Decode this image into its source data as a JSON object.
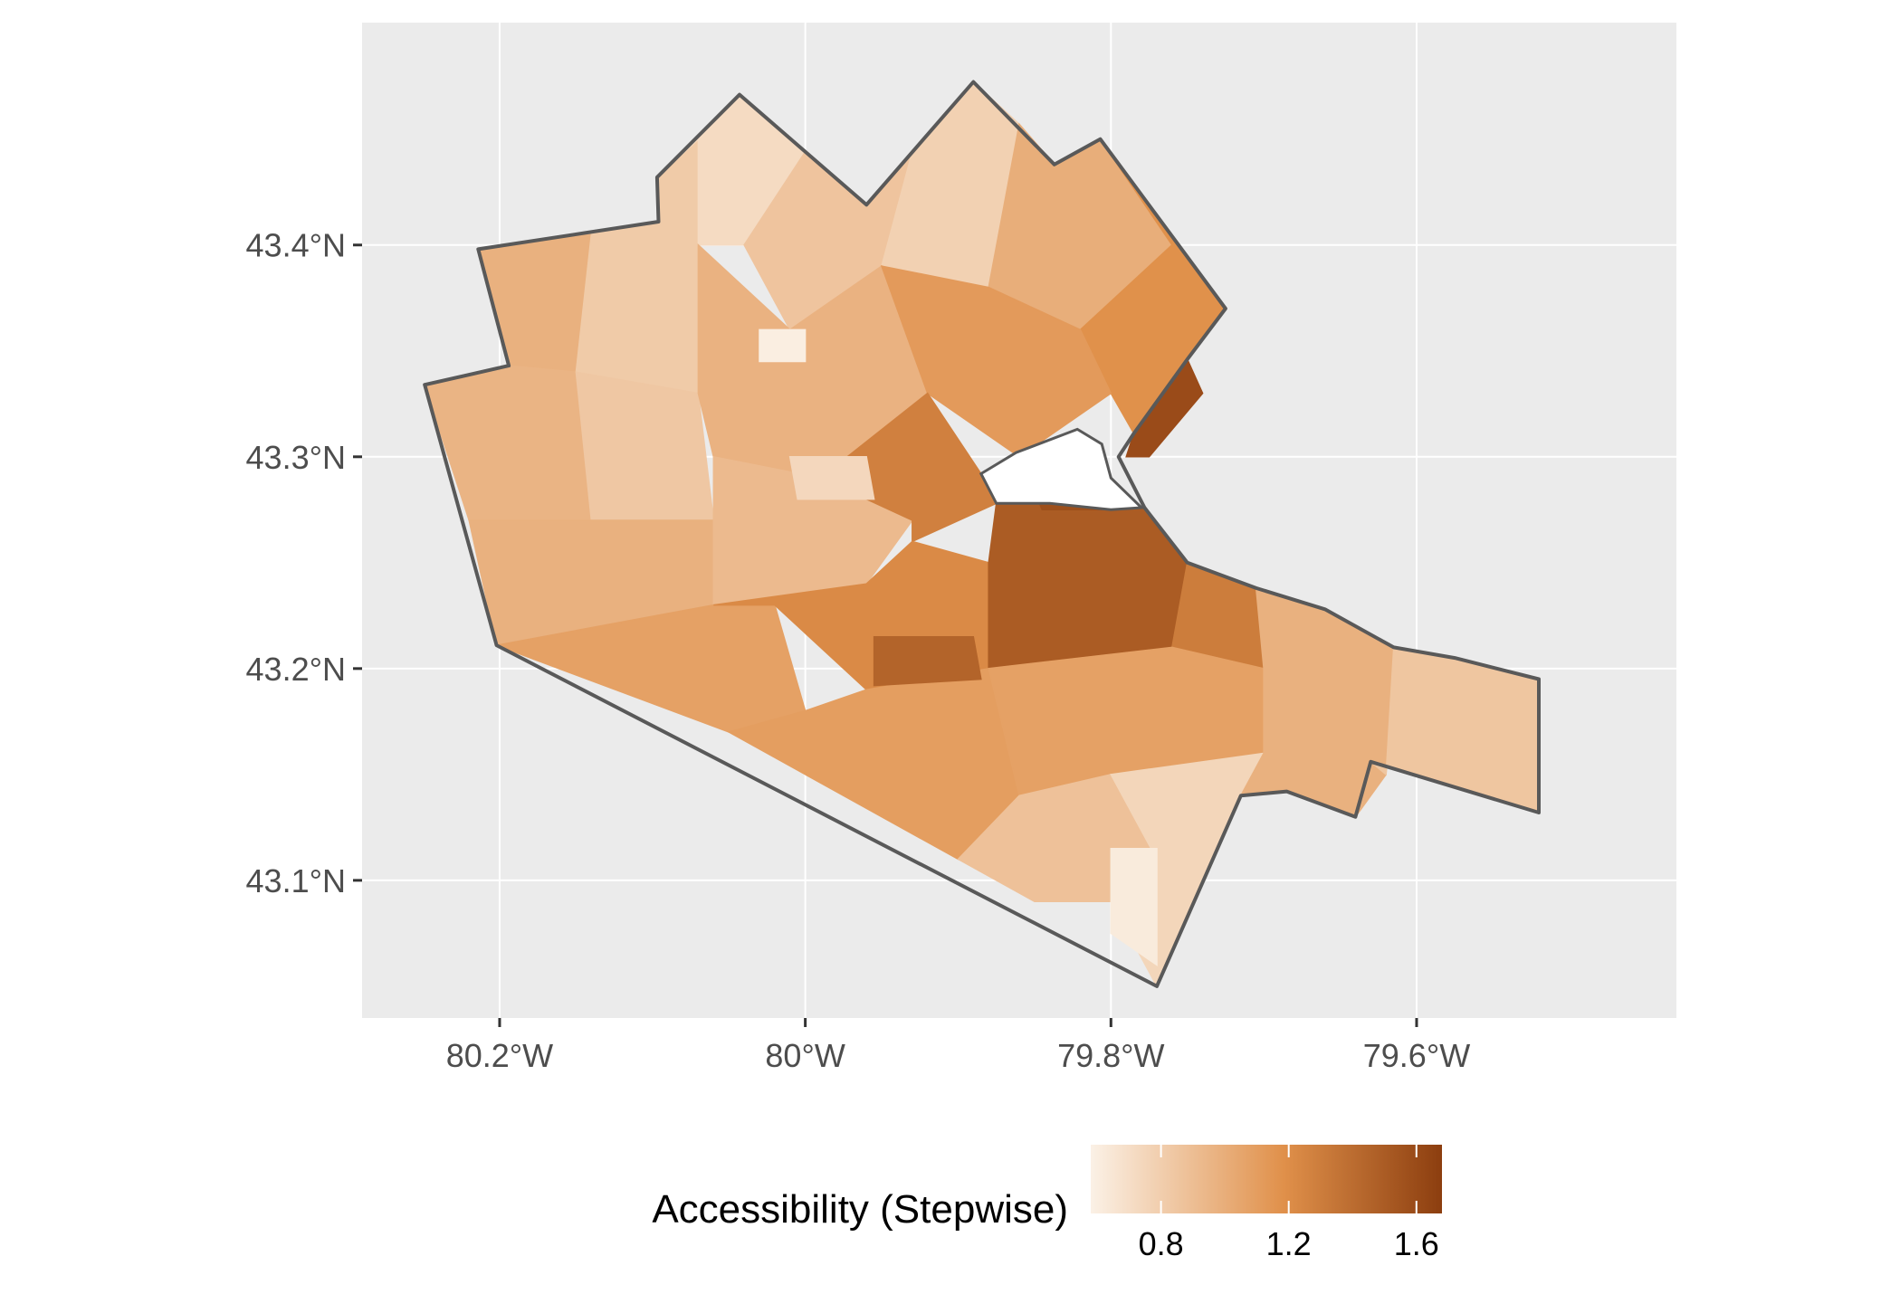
{
  "map": {
    "colors": {
      "panel_background": "#EBEBEB",
      "gridline": "#FFFFFF",
      "boundary": "#595959",
      "water": "#FFFFFF",
      "axis_text": "#4D4D4D",
      "axis_tick": "#333333",
      "scale_low": "#FBF1E6",
      "scale_high": "#8C3E0F"
    },
    "axes": {
      "x_range": [
        -80.29,
        -79.43
      ],
      "y_range": [
        43.035,
        43.505
      ],
      "x_ticks": [
        {
          "value": -80.2,
          "label": "80.2°W"
        },
        {
          "value": -80.0,
          "label": "80°W"
        },
        {
          "value": -79.8,
          "label": "79.8°W"
        },
        {
          "value": -79.6,
          "label": "79.6°W"
        }
      ],
      "y_ticks": [
        {
          "value": 43.4,
          "label": "43.4°N"
        },
        {
          "value": 43.3,
          "label": "43.3°N"
        },
        {
          "value": 43.2,
          "label": "43.2°N"
        },
        {
          "value": 43.1,
          "label": "43.1°N"
        }
      ]
    },
    "legend": {
      "title": "Accessibility (Stepwise)",
      "position": "bottom",
      "range": [
        0.58,
        1.68
      ],
      "ticks": [
        {
          "value": 0.8,
          "label": "0.8"
        },
        {
          "value": 1.2,
          "label": "1.2"
        },
        {
          "value": 1.6,
          "label": "1.6"
        }
      ]
    },
    "boundary_lonlat": [
      [
        -80.214,
        43.398
      ],
      [
        -80.096,
        43.411
      ],
      [
        -80.097,
        43.432
      ],
      [
        -80.043,
        43.471
      ],
      [
        -79.96,
        43.419
      ],
      [
        -79.89,
        43.477
      ],
      [
        -79.837,
        43.438
      ],
      [
        -79.807,
        43.45
      ],
      [
        -79.725,
        43.37
      ],
      [
        -79.75,
        43.346
      ],
      [
        -79.785,
        43.311
      ],
      [
        -79.795,
        43.3
      ],
      [
        -79.778,
        43.276
      ],
      [
        -79.75,
        43.25
      ],
      [
        -79.705,
        43.238
      ],
      [
        -79.66,
        43.228
      ],
      [
        -79.615,
        43.21
      ],
      [
        -79.575,
        43.205
      ],
      [
        -79.52,
        43.195
      ],
      [
        -79.52,
        43.132
      ],
      [
        -79.63,
        43.156
      ],
      [
        -79.64,
        43.13
      ],
      [
        -79.685,
        43.142
      ],
      [
        -79.715,
        43.14
      ],
      [
        -79.77,
        43.05
      ],
      [
        -80.202,
        43.211
      ],
      [
        -80.249,
        43.334
      ],
      [
        -80.194,
        43.343
      ]
    ],
    "water_lonlat": [
      [
        -79.885,
        43.292
      ],
      [
        -79.862,
        43.302
      ],
      [
        -79.822,
        43.313
      ],
      [
        -79.806,
        43.306
      ],
      [
        -79.8,
        43.29
      ],
      [
        -79.78,
        43.276
      ],
      [
        -79.8,
        43.275
      ],
      [
        -79.84,
        43.278
      ],
      [
        -79.875,
        43.278
      ]
    ],
    "regions": [
      {
        "lonlat": [
          [
            -80.214,
            43.398
          ],
          [
            -80.14,
            43.405
          ],
          [
            -80.15,
            43.34
          ],
          [
            -80.194,
            43.343
          ]
        ],
        "value": 0.98
      },
      {
        "lonlat": [
          [
            -80.14,
            43.405
          ],
          [
            -80.096,
            43.411
          ],
          [
            -80.097,
            43.432
          ],
          [
            -80.07,
            43.45
          ],
          [
            -80.07,
            43.33
          ],
          [
            -80.15,
            43.34
          ]
        ],
        "value": 0.82
      },
      {
        "lonlat": [
          [
            -80.097,
            43.432
          ],
          [
            -80.043,
            43.471
          ],
          [
            -80.0,
            43.444
          ],
          [
            -80.04,
            43.4
          ],
          [
            -80.07,
            43.4
          ],
          [
            -80.07,
            43.45
          ]
        ],
        "value": 0.72
      },
      {
        "lonlat": [
          [
            -80.0,
            43.444
          ],
          [
            -79.96,
            43.419
          ],
          [
            -79.93,
            43.444
          ],
          [
            -79.95,
            43.39
          ],
          [
            -80.01,
            43.36
          ],
          [
            -80.04,
            43.4
          ]
        ],
        "value": 0.86
      },
      {
        "lonlat": [
          [
            -79.93,
            43.444
          ],
          [
            -79.89,
            43.477
          ],
          [
            -79.86,
            43.457
          ],
          [
            -79.88,
            43.38
          ],
          [
            -79.95,
            43.39
          ]
        ],
        "value": 0.78
      },
      {
        "lonlat": [
          [
            -79.86,
            43.457
          ],
          [
            -79.837,
            43.438
          ],
          [
            -79.807,
            43.45
          ],
          [
            -79.76,
            43.4
          ],
          [
            -79.82,
            43.36
          ],
          [
            -79.88,
            43.38
          ]
        ],
        "value": 1.0
      },
      {
        "lonlat": [
          [
            -79.807,
            43.45
          ],
          [
            -79.725,
            43.37
          ],
          [
            -79.75,
            43.346
          ],
          [
            -79.785,
            43.311
          ],
          [
            -79.8,
            43.33
          ],
          [
            -79.82,
            43.36
          ],
          [
            -79.76,
            43.4
          ]
        ],
        "value": 1.18
      },
      {
        "lonlat": [
          [
            -80.249,
            43.334
          ],
          [
            -80.194,
            43.343
          ],
          [
            -80.15,
            43.34
          ],
          [
            -80.14,
            43.27
          ],
          [
            -80.22,
            43.27
          ]
        ],
        "value": 0.96
      },
      {
        "lonlat": [
          [
            -80.15,
            43.34
          ],
          [
            -80.07,
            43.33
          ],
          [
            -80.06,
            43.27
          ],
          [
            -80.14,
            43.27
          ]
        ],
        "value": 0.84
      },
      {
        "lonlat": [
          [
            -80.07,
            43.4
          ],
          [
            -80.01,
            43.36
          ],
          [
            -79.95,
            43.39
          ],
          [
            -79.92,
            43.33
          ],
          [
            -79.99,
            43.29
          ],
          [
            -80.06,
            43.3
          ],
          [
            -80.07,
            43.33
          ]
        ],
        "value": 0.97
      },
      {
        "lonlat": [
          [
            -79.95,
            43.39
          ],
          [
            -79.88,
            43.38
          ],
          [
            -79.82,
            43.36
          ],
          [
            -79.8,
            43.33
          ],
          [
            -79.86,
            43.3
          ],
          [
            -79.92,
            43.33
          ]
        ],
        "value": 1.12
      },
      {
        "lonlat": [
          [
            -80.22,
            43.27
          ],
          [
            -80.14,
            43.27
          ],
          [
            -80.06,
            43.27
          ],
          [
            -80.06,
            43.23
          ],
          [
            -80.202,
            43.211
          ]
        ],
        "value": 0.98
      },
      {
        "lonlat": [
          [
            -80.06,
            43.3
          ],
          [
            -79.99,
            43.29
          ],
          [
            -79.93,
            43.27
          ],
          [
            -79.96,
            43.24
          ],
          [
            -80.06,
            43.23
          ],
          [
            -80.06,
            43.27
          ]
        ],
        "value": 0.92
      },
      {
        "lonlat": [
          [
            -79.99,
            43.29
          ],
          [
            -79.92,
            43.33
          ],
          [
            -79.885,
            43.292
          ],
          [
            -79.875,
            43.278
          ],
          [
            -79.93,
            43.26
          ],
          [
            -79.93,
            43.27
          ]
        ],
        "value": 1.28
      },
      {
        "lonlat": [
          [
            -80.202,
            43.211
          ],
          [
            -80.06,
            43.23
          ],
          [
            -80.02,
            43.23
          ],
          [
            -80.0,
            43.18
          ],
          [
            -80.05,
            43.17
          ]
        ],
        "value": 1.08
      },
      {
        "lonlat": [
          [
            -80.06,
            43.23
          ],
          [
            -79.96,
            43.24
          ],
          [
            -79.93,
            43.26
          ],
          [
            -79.88,
            43.25
          ],
          [
            -79.88,
            43.2
          ],
          [
            -79.96,
            43.19
          ],
          [
            -80.02,
            43.23
          ]
        ],
        "value": 1.22
      },
      {
        "lonlat": [
          [
            -80.05,
            43.17
          ],
          [
            -80.0,
            43.18
          ],
          [
            -79.96,
            43.19
          ],
          [
            -79.88,
            43.2
          ],
          [
            -79.86,
            43.14
          ],
          [
            -79.9,
            43.11
          ]
        ],
        "value": 1.1
      },
      {
        "lonlat": [
          [
            -79.875,
            43.278
          ],
          [
            -79.84,
            43.278
          ],
          [
            -79.8,
            43.275
          ],
          [
            -79.78,
            43.276
          ],
          [
            -79.75,
            43.25
          ],
          [
            -79.76,
            43.21
          ],
          [
            -79.88,
            43.2
          ],
          [
            -79.88,
            43.25
          ]
        ],
        "value": 1.5
      },
      {
        "lonlat": [
          [
            -79.75,
            43.25
          ],
          [
            -79.705,
            43.238
          ],
          [
            -79.7,
            43.2
          ],
          [
            -79.76,
            43.21
          ]
        ],
        "value": 1.3
      },
      {
        "lonlat": [
          [
            -79.76,
            43.21
          ],
          [
            -79.7,
            43.2
          ],
          [
            -79.7,
            43.16
          ],
          [
            -79.8,
            43.15
          ],
          [
            -79.86,
            43.14
          ],
          [
            -79.88,
            43.2
          ]
        ],
        "value": 1.08
      },
      {
        "lonlat": [
          [
            -79.9,
            43.11
          ],
          [
            -79.86,
            43.14
          ],
          [
            -79.8,
            43.15
          ],
          [
            -79.77,
            43.11
          ],
          [
            -79.8,
            43.09
          ],
          [
            -79.85,
            43.09
          ]
        ],
        "value": 0.88
      },
      {
        "lonlat": [
          [
            -79.8,
            43.15
          ],
          [
            -79.7,
            43.16
          ],
          [
            -79.715,
            43.14
          ],
          [
            -79.77,
            43.05
          ],
          [
            -79.8,
            43.09
          ],
          [
            -79.77,
            43.11
          ]
        ],
        "value": 0.75
      },
      {
        "lonlat": [
          [
            -79.705,
            43.238
          ],
          [
            -79.66,
            43.228
          ],
          [
            -79.615,
            43.21
          ],
          [
            -79.62,
            43.15
          ],
          [
            -79.64,
            43.13
          ],
          [
            -79.685,
            43.142
          ],
          [
            -79.715,
            43.14
          ],
          [
            -79.7,
            43.16
          ],
          [
            -79.7,
            43.2
          ]
        ],
        "value": 0.98
      },
      {
        "lonlat": [
          [
            -79.615,
            43.21
          ],
          [
            -79.575,
            43.205
          ],
          [
            -79.52,
            43.195
          ],
          [
            -79.52,
            43.132
          ],
          [
            -79.63,
            43.156
          ],
          [
            -79.62,
            43.15
          ]
        ],
        "value": 0.85
      },
      {
        "lonlat": [
          [
            -80.03,
            43.36
          ],
          [
            -80.0,
            43.36
          ],
          [
            -80.0,
            43.345
          ],
          [
            -80.03,
            43.345
          ]
        ],
        "value": 0.6
      },
      {
        "lonlat": [
          [
            -80.01,
            43.3
          ],
          [
            -79.96,
            43.3
          ],
          [
            -79.955,
            43.28
          ],
          [
            -80.005,
            43.28
          ]
        ],
        "value": 0.74
      },
      {
        "lonlat": [
          [
            -79.955,
            43.215
          ],
          [
            -79.89,
            43.215
          ],
          [
            -79.885,
            43.195
          ],
          [
            -79.955,
            43.192
          ]
        ],
        "value": 1.45
      },
      {
        "lonlat": [
          [
            -79.8,
            43.115
          ],
          [
            -79.77,
            43.115
          ],
          [
            -79.77,
            43.06
          ],
          [
            -79.8,
            43.075
          ]
        ],
        "value": 0.62
      },
      {
        "lonlat": [
          [
            -79.86,
            43.3
          ],
          [
            -79.81,
            43.3
          ],
          [
            -79.805,
            43.275
          ],
          [
            -79.845,
            43.275
          ]
        ],
        "value": 1.58
      },
      {
        "lonlat": [
          [
            -79.79,
            43.3
          ],
          [
            -79.785,
            43.311
          ],
          [
            -79.75,
            43.346
          ],
          [
            -79.74,
            43.33
          ],
          [
            -79.775,
            43.3
          ]
        ],
        "value": 1.6
      }
    ]
  }
}
